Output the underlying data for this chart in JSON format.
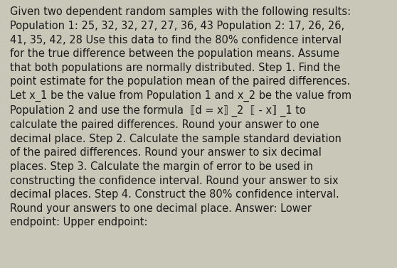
{
  "background_color": "#c8c7b8",
  "text_color": "#1a1a1a",
  "font_size": 10.5,
  "line1": "Given two dependent random samples with the following results:",
  "line2": "Population 1: 25, 32, 32, 27, 27, 36, 43 Population 2: 17, 26, 26,",
  "line3": "41, 35, 42, 28 Use this data to find the 80% confidence interval",
  "line4": "for the true difference between the population means. Assume",
  "line5": "that both populations are normally distributed. Step 1. Find the",
  "line6": "point estimate for the population mean of the paired differences.",
  "line7": "Let x_1 be the value from Population 1 and x_2 be the value from",
  "line8": "Population 2 and use the formula  ⟦d = x⟧ _2  ⟦ - x⟧ _1 to",
  "line9": "calculate the paired differences. Round your answer to one",
  "line10": "decimal place. Step 2. Calculate the sample standard deviation",
  "line11": "of the paired differences. Round your answer to six decimal",
  "line12": "places. Step 3. Calculate the margin of error to be used in",
  "line13": "constructing the confidence interval. Round your answer to six",
  "line14": "decimal places. Step 4. Construct the 80% confidence interval.",
  "line15": "Round your answers to one decimal place. Answer: Lower",
  "line16": "endpoint: Upper endpoint:",
  "fig_width": 5.58,
  "fig_height": 3.77,
  "dpi": 100
}
